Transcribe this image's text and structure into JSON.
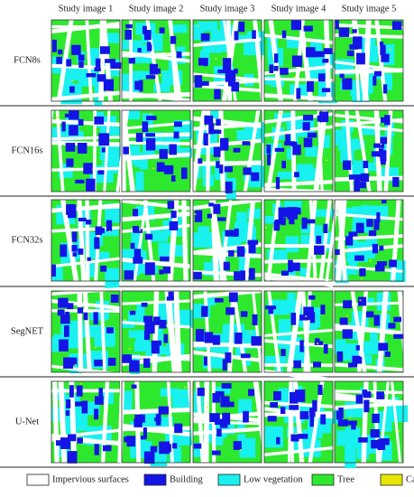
{
  "columns": [
    "Study image 1",
    "Study image 2",
    "Study image 3",
    "Study image 4",
    "Study image 5"
  ],
  "rows": [
    "FCN8s",
    "FCN16s",
    "FCN32s",
    "SegNET",
    "U-Net"
  ],
  "legend": [
    {
      "label": "Impervious surfaces",
      "color": "#ffffff"
    },
    {
      "label": "Building",
      "color": "#1414e6"
    },
    {
      "label": "Low vegetation",
      "color": "#19f0f0"
    },
    {
      "label": "Tree",
      "color": "#2ee82e"
    },
    {
      "label": "Car",
      "color": "#e6e600"
    }
  ]
}
